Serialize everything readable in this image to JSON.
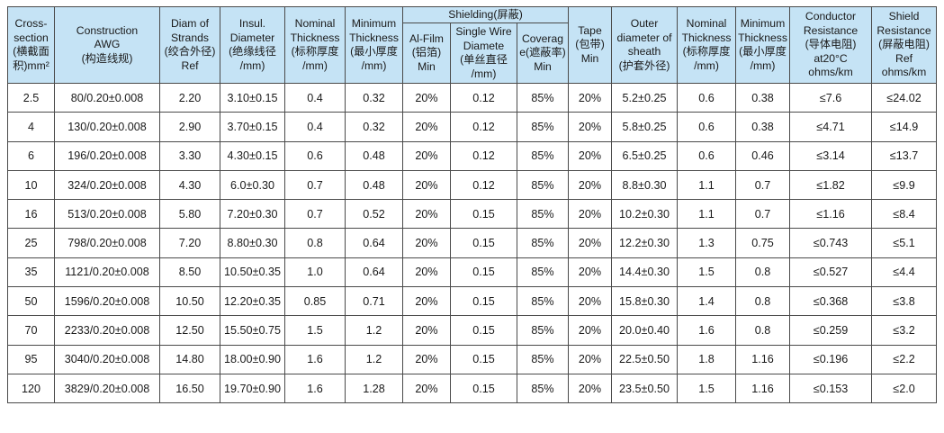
{
  "headers": {
    "cross_section": [
      "Cross-",
      "section",
      "(横截面",
      "积)mm²"
    ],
    "construction": [
      "Construction",
      "AWG",
      "(构造线规)"
    ],
    "diam_strands": [
      "Diam of",
      "Strands",
      "(绞合外径)",
      "Ref"
    ],
    "insul_diameter": [
      "Insul.",
      "Diameter",
      "(绝缘线径",
      "/mm)"
    ],
    "nominal_thickness": [
      "Nominal",
      "Thickness",
      "(标称厚度",
      "/mm)"
    ],
    "minimum_thickness": [
      "Minimum",
      "Thickness",
      "(最小厚度",
      "/mm)"
    ],
    "shielding": "Shielding(屏蔽)",
    "al_film": [
      "Al-Film",
      "(铝箔)",
      "Min"
    ],
    "single_wire": [
      "Single Wire",
      "Diamete",
      "(单丝直径",
      "/mm)"
    ],
    "coverage": [
      "Coverag",
      "e(遮蔽率)",
      "Min"
    ],
    "tape": [
      "Tape",
      "(包带)",
      "Min"
    ],
    "outer_diameter": [
      "Outer",
      "diameter of",
      "sheath",
      "(护套外径)"
    ],
    "nominal_thickness_2": [
      "Nominal",
      "Thickness",
      "(标称厚度",
      "/mm)"
    ],
    "minimum_thickness_2": [
      "Minimum",
      "Thickness",
      "(最小厚度",
      "/mm)"
    ],
    "conductor_resistance": [
      "Conductor",
      "Resistance",
      "(导体电阻)",
      "at20°C",
      "ohms/km"
    ],
    "shield_resistance": [
      "Shield",
      "Resistance",
      "(屏蔽电阻)",
      "Ref",
      "ohms/km"
    ]
  },
  "rows": [
    [
      "2.5",
      "80/0.20±0.008",
      "2.20",
      "3.10±0.15",
      "0.4",
      "0.32",
      "20%",
      "0.12",
      "85%",
      "20%",
      "5.2±0.25",
      "0.6",
      "0.38",
      "≤7.6",
      "≤24.02"
    ],
    [
      "4",
      "130/0.20±0.008",
      "2.90",
      "3.70±0.15",
      "0.4",
      "0.32",
      "20%",
      "0.12",
      "85%",
      "20%",
      "5.8±0.25",
      "0.6",
      "0.38",
      "≤4.71",
      "≤14.9"
    ],
    [
      "6",
      "196/0.20±0.008",
      "3.30",
      "4.30±0.15",
      "0.6",
      "0.48",
      "20%",
      "0.12",
      "85%",
      "20%",
      "6.5±0.25",
      "0.6",
      "0.46",
      "≤3.14",
      "≤13.7"
    ],
    [
      "10",
      "324/0.20±0.008",
      "4.30",
      "6.0±0.30",
      "0.7",
      "0.48",
      "20%",
      "0.12",
      "85%",
      "20%",
      "8.8±0.30",
      "1.1",
      "0.7",
      "≤1.82",
      "≤9.9"
    ],
    [
      "16",
      "513/0.20±0.008",
      "5.80",
      "7.20±0.30",
      "0.7",
      "0.52",
      "20%",
      "0.15",
      "85%",
      "20%",
      "10.2±0.30",
      "1.1",
      "0.7",
      "≤1.16",
      "≤8.4"
    ],
    [
      "25",
      "798/0.20±0.008",
      "7.20",
      "8.80±0.30",
      "0.8",
      "0.64",
      "20%",
      "0.15",
      "85%",
      "20%",
      "12.2±0.30",
      "1.3",
      "0.75",
      "≤0.743",
      "≤5.1"
    ],
    [
      "35",
      "1121/0.20±0.008",
      "8.50",
      "10.50±0.35",
      "1.0",
      "0.64",
      "20%",
      "0.15",
      "85%",
      "20%",
      "14.4±0.30",
      "1.5",
      "0.8",
      "≤0.527",
      "≤4.4"
    ],
    [
      "50",
      "1596/0.20±0.008",
      "10.50",
      "12.20±0.35",
      "0.85",
      "0.71",
      "20%",
      "0.15",
      "85%",
      "20%",
      "15.8±0.30",
      "1.4",
      "0.8",
      "≤0.368",
      "≤3.8"
    ],
    [
      "70",
      "2233/0.20±0.008",
      "12.50",
      "15.50±0.75",
      "1.5",
      "1.2",
      "20%",
      "0.15",
      "85%",
      "20%",
      "20.0±0.40",
      "1.6",
      "0.8",
      "≤0.259",
      "≤3.2"
    ],
    [
      "95",
      "3040/0.20±0.008",
      "14.80",
      "18.00±0.90",
      "1.6",
      "1.2",
      "20%",
      "0.15",
      "85%",
      "20%",
      "22.5±0.50",
      "1.8",
      "1.16",
      "≤0.196",
      "≤2.2"
    ],
    [
      "120",
      "3829/0.20±0.008",
      "16.50",
      "19.70±0.90",
      "1.6",
      "1.28",
      "20%",
      "0.15",
      "85%",
      "20%",
      "23.5±0.50",
      "1.5",
      "1.16",
      "≤0.153",
      "≤2.0"
    ]
  ],
  "colors": {
    "header_bg": "#c5e3f5",
    "border": "#4a4a4a",
    "text": "#1a1a1a"
  }
}
